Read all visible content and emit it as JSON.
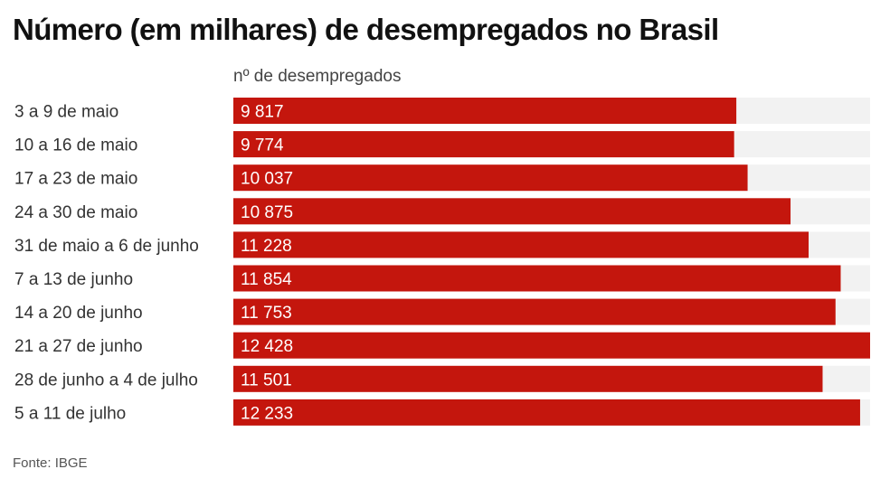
{
  "title": "Número (em milhares) de desempregados no Brasil",
  "source": "Fonte: IBGE",
  "colors": {
    "bar": "#c4160d",
    "track": "#f2f2f2",
    "label": "#333333",
    "value_label": "#ffffff"
  },
  "chart_data": {
    "type": "bar",
    "orientation": "horizontal",
    "title": "Número (em milhares) de desempregados no Brasil",
    "column_header": "nº de desempregados",
    "categories": [
      "3 a 9 de maio",
      "10 a 16 de maio",
      "17 a 23 de maio",
      "24 a 30 de maio",
      "31 de maio a 6 de junho",
      "7 a 13 de junho",
      "14 a 20 de junho",
      "21 a 27 de junho",
      "28 de junho a 4 de julho",
      "5 a 11 de julho"
    ],
    "values": [
      9817,
      9774,
      10037,
      10875,
      11228,
      11854,
      11753,
      12428,
      11501,
      12233
    ],
    "value_labels": [
      "9 817",
      "9 774",
      "10 037",
      "10 875",
      "11 228",
      "11 854",
      "11 753",
      "12 428",
      "11 501",
      "12 233"
    ],
    "xlim": [
      0,
      12428
    ],
    "grid": false,
    "legend": "none"
  }
}
